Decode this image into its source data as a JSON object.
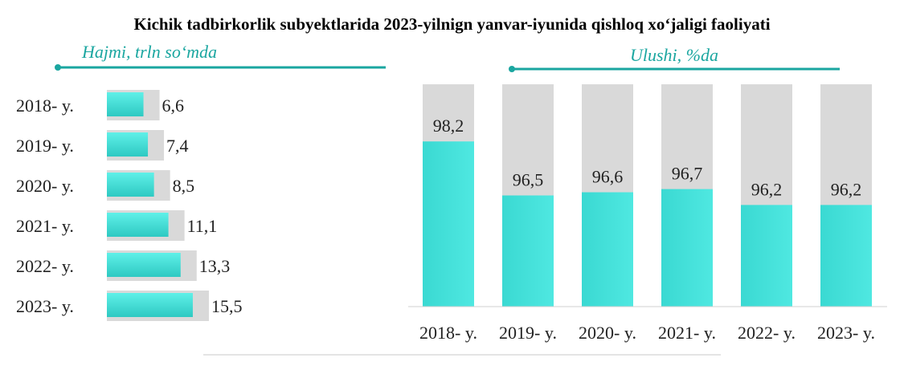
{
  "title": "Kichik tadbirkorlik subyektlarida 2023-yilnign yanvar-iyunida qishloq xo‘jaligi faoliyati",
  "colors": {
    "accent": "#1aa6a0",
    "bar": "#40e0d8",
    "bar_dark": "#22c3bd",
    "background_bar": "#d9d9d9",
    "text": "#222222"
  },
  "chart_data": [
    {
      "type": "bar",
      "orientation": "horizontal",
      "subtitle": "Hajmi, trln so‘mda",
      "categories": [
        "2018- y.",
        "2019- y.",
        "2020- y.",
        "2021- y.",
        "2022- y.",
        "2023- y."
      ],
      "values": [
        6.6,
        7.4,
        8.5,
        11.1,
        13.3,
        15.5
      ],
      "value_labels": [
        "6,6",
        "7,4",
        "8,5",
        "11,1",
        "13,3",
        "15,5"
      ],
      "xlim": [
        0,
        22
      ]
    },
    {
      "type": "bar",
      "orientation": "vertical",
      "subtitle": "Ulushi, %da",
      "categories": [
        "2018- y.",
        "2019- y.",
        "2020- y.",
        "2021- y.",
        "2022- y.",
        "2023- y."
      ],
      "values": [
        98.2,
        96.5,
        96.6,
        96.7,
        96.2,
        96.2
      ],
      "value_labels": [
        "98,2",
        "96,5",
        "96,6",
        "96,7",
        "96,2",
        "96,2"
      ],
      "ylim": [
        93.0,
        100.0
      ],
      "background_max": 100
    }
  ]
}
